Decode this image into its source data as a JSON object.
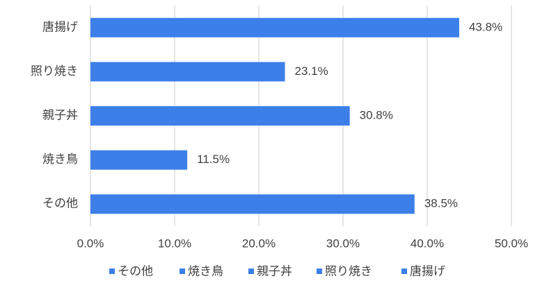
{
  "chart_data": {
    "type": "hbar",
    "categories": [
      "唐揚げ",
      "照り焼き",
      "親子丼",
      "焼き鳥",
      "その他"
    ],
    "values": [
      43.8,
      23.1,
      30.8,
      11.5,
      38.5
    ],
    "value_labels": [
      "43.8%",
      "23.1%",
      "30.8%",
      "11.5%",
      "38.5%"
    ],
    "color": "#3d7fe8",
    "xlim": [
      0,
      50
    ],
    "xticks": [
      {
        "value": 0,
        "label": "0.0%"
      },
      {
        "value": 10,
        "label": "10.0%"
      },
      {
        "value": 20,
        "label": "20.0%"
      },
      {
        "value": 30,
        "label": "30.0%"
      },
      {
        "value": 40,
        "label": "40.0%"
      },
      {
        "value": 50,
        "label": "50.0%"
      }
    ],
    "grid": true,
    "legend": "bottom"
  }
}
